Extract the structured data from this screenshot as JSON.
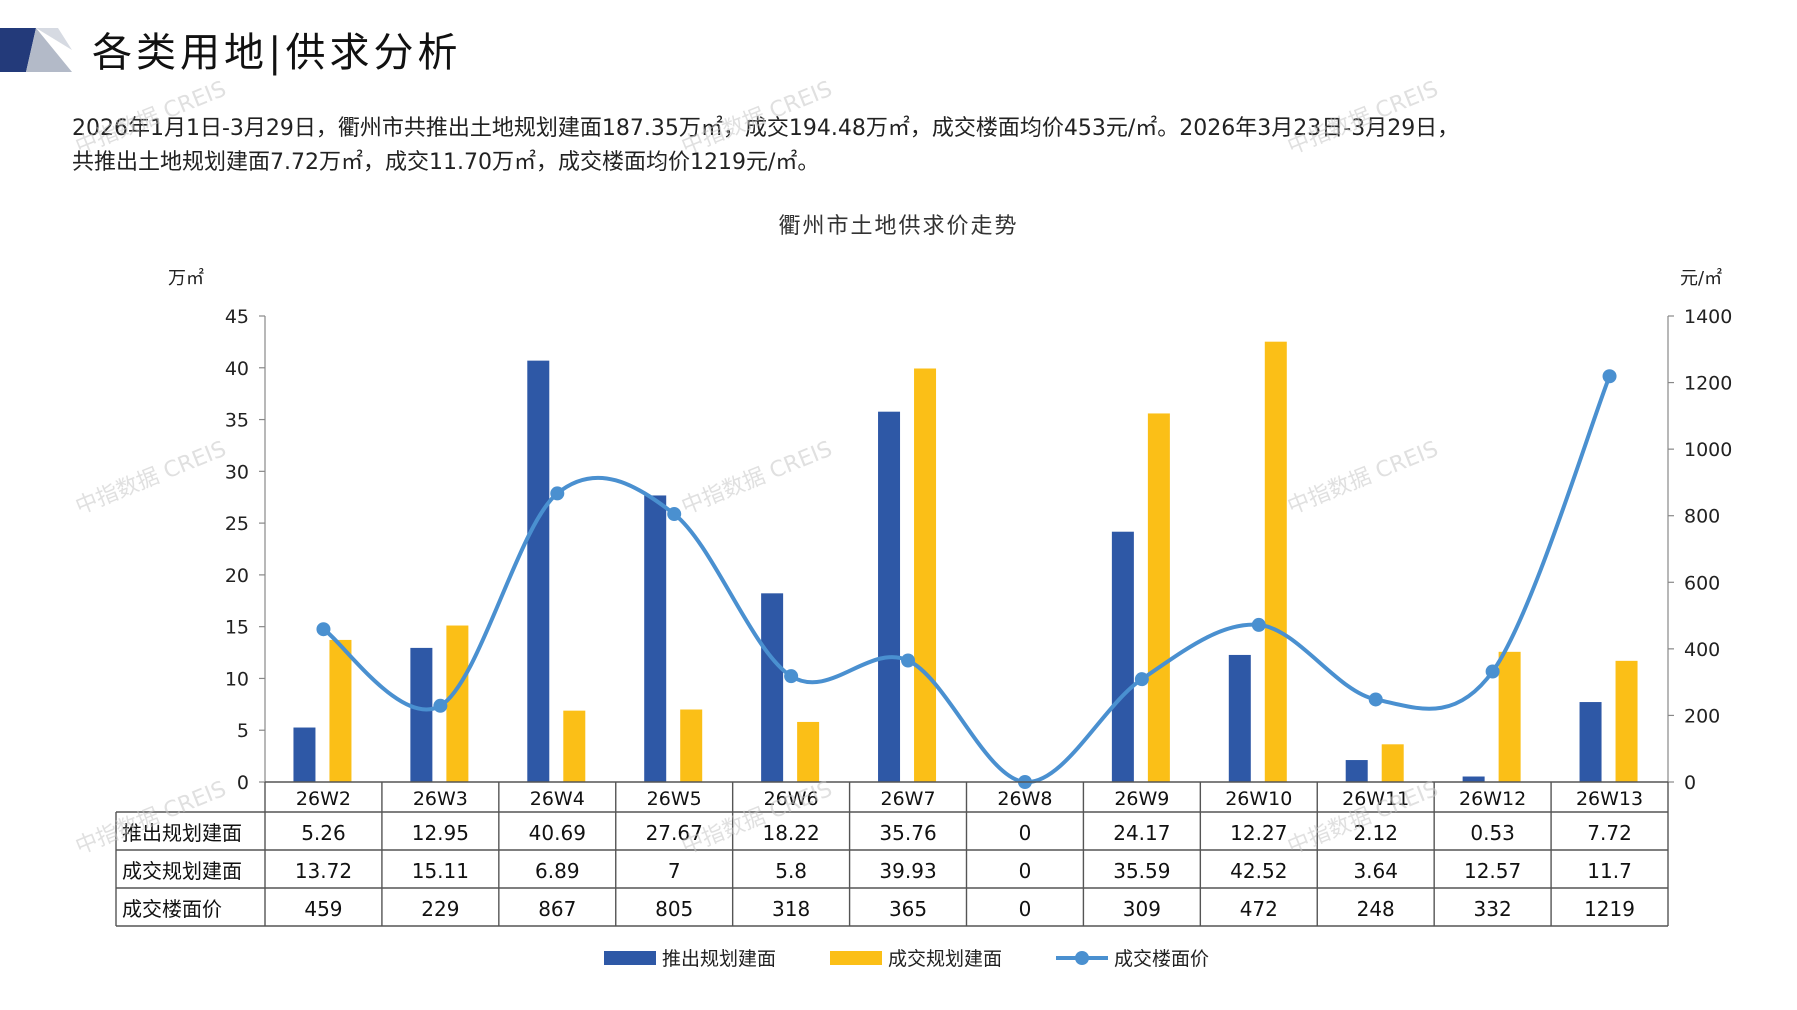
{
  "header": {
    "title": "各类用地|供求分析",
    "summary_line1": "2026年1月1日-3月29日，衢州市共推出土地规划建面187.35万㎡，成交194.48万㎡，成交楼面均价453元/㎡。2026年3月23日-3月29日，",
    "summary_line2": "共推出土地规划建面7.72万㎡，成交11.70万㎡，成交楼面均价1219元/㎡。"
  },
  "watermark_text": "中指数据 CREIS",
  "colors": {
    "supply": "#2e58a6",
    "deal": "#fbbf17",
    "price": "#4a90d0",
    "logo_dark": "#233a7a",
    "logo_light": "#9aa3b5"
  },
  "chart_data": {
    "type": "bar",
    "title": "衢州市土地供求价走势",
    "y_left_unit": "万㎡",
    "y_right_unit": "元/㎡",
    "y_left_range": [
      0,
      45
    ],
    "y_left_ticks": [
      0,
      5,
      10,
      15,
      20,
      25,
      30,
      35,
      40,
      45
    ],
    "y_right_range": [
      0,
      1400
    ],
    "y_right_ticks": [
      0,
      200,
      400,
      600,
      800,
      1000,
      1200,
      1400
    ],
    "categories": [
      "26W2",
      "26W3",
      "26W4",
      "26W5",
      "26W6",
      "26W7",
      "26W8",
      "26W9",
      "26W10",
      "26W11",
      "26W12",
      "26W13"
    ],
    "series": [
      {
        "name": "推出规划建面",
        "type": "bar",
        "axis": "left",
        "values": [
          5.26,
          12.95,
          40.69,
          27.67,
          18.22,
          35.76,
          0,
          24.17,
          12.27,
          2.12,
          0.53,
          7.72
        ],
        "labels": [
          "5.26",
          "12.95",
          "40.69",
          "27.67",
          "18.22",
          "35.76",
          "0",
          "24.17",
          "12.27",
          "2.12",
          "0.53",
          "7.72"
        ]
      },
      {
        "name": "成交规划建面",
        "type": "bar",
        "axis": "left",
        "values": [
          13.72,
          15.11,
          6.89,
          7,
          5.8,
          39.93,
          0,
          35.59,
          42.52,
          3.64,
          12.57,
          11.7
        ],
        "labels": [
          "13.72",
          "15.11",
          "6.89",
          "7",
          "5.8",
          "39.93",
          "0",
          "35.59",
          "42.52",
          "3.64",
          "12.57",
          "11.7"
        ]
      },
      {
        "name": "成交楼面价",
        "type": "line",
        "axis": "right",
        "values": [
          459,
          229,
          867,
          805,
          318,
          365,
          0,
          309,
          472,
          248,
          332,
          1219
        ],
        "labels": [
          "459",
          "229",
          "867",
          "805",
          "318",
          "365",
          "0",
          "309",
          "472",
          "248",
          "332",
          "1219"
        ]
      }
    ],
    "legend_position": "bottom",
    "data_table": true,
    "grid": false
  }
}
